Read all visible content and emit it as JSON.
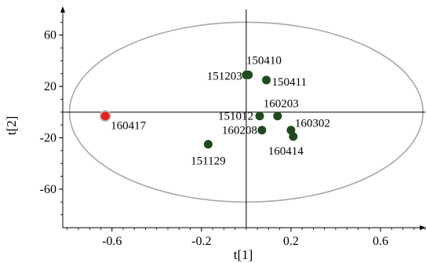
{
  "chart_data": {
    "type": "scatter",
    "title": "",
    "xlabel": "t[1]",
    "ylabel": "t[2]",
    "xlim": [
      -0.82,
      0.8
    ],
    "ylim": [
      -90,
      80
    ],
    "xticks": [
      {
        "value": -0.6,
        "label": "-0.6"
      },
      {
        "value": -0.2,
        "label": "-0.2"
      },
      {
        "value": 0.2,
        "label": "0.2"
      },
      {
        "value": 0.6,
        "label": "0.6"
      }
    ],
    "yticks": [
      {
        "value": 60,
        "label": "60"
      },
      {
        "value": 20,
        "label": "20"
      },
      {
        "value": -20,
        "label": "-20"
      },
      {
        "value": -60,
        "label": "-60"
      }
    ],
    "colors": {
      "normal_point": "#1f4a1f",
      "outlier_point": "#e8201c",
      "ellipse": "#a8a8a8",
      "axes": "#000000"
    },
    "ellipse": {
      "center_x": 0.0,
      "center_y": 0.0,
      "radius_x": 0.79,
      "radius_y": 70
    },
    "points": [
      {
        "id": "150410",
        "x": 0.0,
        "y": 29,
        "outlier": false
      },
      {
        "id": "151203",
        "x": 0.01,
        "y": 29,
        "outlier": false
      },
      {
        "id": "150411",
        "x": 0.09,
        "y": 25,
        "outlier": false
      },
      {
        "id": "160203",
        "x": 0.14,
        "y": -3,
        "outlier": false
      },
      {
        "id": "151012",
        "x": 0.06,
        "y": -3,
        "outlier": false
      },
      {
        "id": "160302",
        "x": 0.2,
        "y": -14,
        "outlier": false
      },
      {
        "id": "160208",
        "x": 0.07,
        "y": -14,
        "outlier": false
      },
      {
        "id": "160414",
        "x": 0.21,
        "y": -19,
        "outlier": false
      },
      {
        "id": "151129",
        "x": -0.17,
        "y": -25,
        "outlier": false
      },
      {
        "id": "160417",
        "x": -0.63,
        "y": -3,
        "outlier": true
      }
    ]
  }
}
